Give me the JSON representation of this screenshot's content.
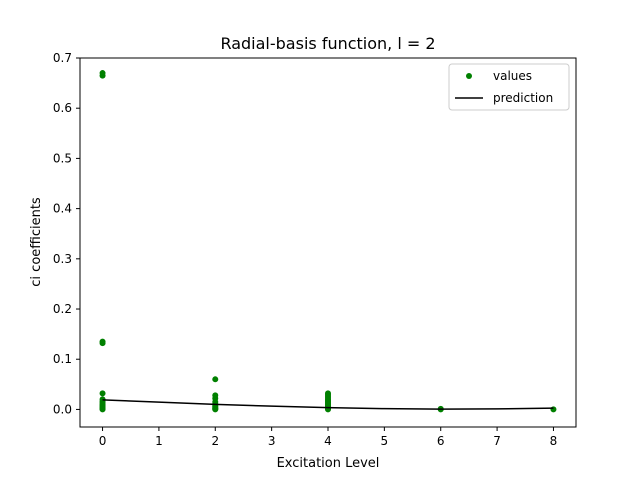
{
  "chart_data": {
    "type": "scatter",
    "title": "Radial-basis function, l = 2",
    "xlabel": "Excitation Level",
    "ylabel": "ci coefficients",
    "xlim": [
      -0.4,
      8.4
    ],
    "ylim": [
      -0.035,
      0.7
    ],
    "xticks": [
      "0",
      "1",
      "2",
      "3",
      "4",
      "5",
      "6",
      "7",
      "8"
    ],
    "yticks": [
      "0.0",
      "0.1",
      "0.2",
      "0.3",
      "0.4",
      "0.5",
      "0.6",
      "0.7"
    ],
    "grid": false,
    "legend_position": "top-right",
    "series": [
      {
        "name": "values",
        "kind": "points",
        "color": "#008000",
        "points": [
          [
            0,
            0.67
          ],
          [
            0,
            0.665
          ],
          [
            0,
            0.135
          ],
          [
            0,
            0.132
          ],
          [
            0,
            0.032
          ],
          [
            0,
            0.02
          ],
          [
            0,
            0.016
          ],
          [
            0,
            0.013
          ],
          [
            0,
            0.01
          ],
          [
            0,
            0.008
          ],
          [
            0,
            0.006
          ],
          [
            0,
            0.004
          ],
          [
            0,
            0.002
          ],
          [
            0,
            0.001
          ],
          [
            0,
            0.0
          ],
          [
            2,
            0.06
          ],
          [
            2,
            0.028
          ],
          [
            2,
            0.022
          ],
          [
            2,
            0.015
          ],
          [
            2,
            0.011
          ],
          [
            2,
            0.008
          ],
          [
            2,
            0.006
          ],
          [
            2,
            0.004
          ],
          [
            2,
            0.002
          ],
          [
            2,
            0.001
          ],
          [
            2,
            0.0
          ],
          [
            4,
            0.032
          ],
          [
            4,
            0.029
          ],
          [
            4,
            0.026
          ],
          [
            4,
            0.023
          ],
          [
            4,
            0.02
          ],
          [
            4,
            0.018
          ],
          [
            4,
            0.016
          ],
          [
            4,
            0.014
          ],
          [
            4,
            0.012
          ],
          [
            4,
            0.01
          ],
          [
            4,
            0.008
          ],
          [
            4,
            0.006
          ],
          [
            4,
            0.004
          ],
          [
            4,
            0.003
          ],
          [
            4,
            0.002
          ],
          [
            4,
            0.001
          ],
          [
            4,
            0.0
          ],
          [
            6,
            0.001
          ],
          [
            6,
            0.0
          ],
          [
            8,
            0.0
          ]
        ]
      },
      {
        "name": "prediction",
        "kind": "line",
        "color": "#000000",
        "points": [
          [
            0,
            0.019
          ],
          [
            1,
            0.0145
          ],
          [
            2,
            0.01
          ],
          [
            3,
            0.0065
          ],
          [
            4,
            0.0035
          ],
          [
            5,
            0.0015
          ],
          [
            6,
            0.0005
          ],
          [
            7,
            0.001
          ],
          [
            8,
            0.0025
          ]
        ]
      }
    ]
  }
}
